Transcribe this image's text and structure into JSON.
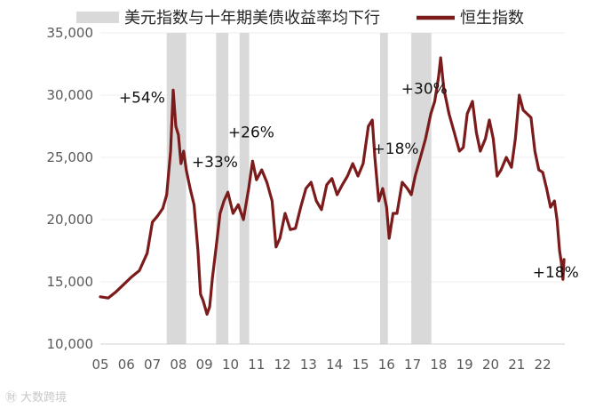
{
  "chart_data": {
    "type": "line",
    "title": "",
    "xlabel": "",
    "ylabel": "",
    "ylim": [
      10000,
      35000
    ],
    "xlim": [
      2005,
      2022.85
    ],
    "yticks": [
      10000,
      15000,
      20000,
      25000,
      30000,
      35000
    ],
    "ytick_labels": [
      "10,000",
      "15,000",
      "20,000",
      "25,000",
      "30,000",
      "35,000"
    ],
    "xticks": [
      2005,
      2006,
      2007,
      2008,
      2009,
      2010,
      2011,
      2012,
      2013,
      2014,
      2015,
      2016,
      2017,
      2018,
      2019,
      2020,
      2021,
      2022
    ],
    "xtick_labels": [
      "05",
      "06",
      "07",
      "08",
      "09",
      "10",
      "11",
      "12",
      "13",
      "14",
      "15",
      "16",
      "17",
      "18",
      "19",
      "20",
      "21",
      "22"
    ],
    "legend": {
      "placement": "top",
      "band_label": "美元指数与十年期美债收益率均下行",
      "line_label": "恒生指数"
    },
    "band_color": "#d9d9d9",
    "line_color": "#7b1b1b",
    "shaded_periods": [
      {
        "start": 2007.55,
        "end": 2008.3
      },
      {
        "start": 2009.45,
        "end": 2009.92
      },
      {
        "start": 2010.35,
        "end": 2010.72
      },
      {
        "start": 2015.75,
        "end": 2016.05
      },
      {
        "start": 2016.95,
        "end": 2017.72
      }
    ],
    "series": [
      {
        "name": "恒生指数",
        "points": [
          [
            2005.0,
            13800
          ],
          [
            2005.3,
            13700
          ],
          [
            2005.6,
            14200
          ],
          [
            2005.9,
            14800
          ],
          [
            2006.2,
            15400
          ],
          [
            2006.5,
            15900
          ],
          [
            2006.8,
            17300
          ],
          [
            2007.0,
            19800
          ],
          [
            2007.2,
            20300
          ],
          [
            2007.4,
            20900
          ],
          [
            2007.55,
            22000
          ],
          [
            2007.7,
            25500
          ],
          [
            2007.8,
            30400
          ],
          [
            2007.9,
            27500
          ],
          [
            2008.0,
            26800
          ],
          [
            2008.1,
            24500
          ],
          [
            2008.2,
            25500
          ],
          [
            2008.3,
            24000
          ],
          [
            2008.45,
            22500
          ],
          [
            2008.6,
            21200
          ],
          [
            2008.75,
            17500
          ],
          [
            2008.85,
            14000
          ],
          [
            2008.95,
            13500
          ],
          [
            2009.1,
            12400
          ],
          [
            2009.2,
            13000
          ],
          [
            2009.3,
            15200
          ],
          [
            2009.45,
            17800
          ],
          [
            2009.6,
            20500
          ],
          [
            2009.75,
            21500
          ],
          [
            2009.9,
            22200
          ],
          [
            2010.1,
            20500
          ],
          [
            2010.3,
            21200
          ],
          [
            2010.5,
            20000
          ],
          [
            2010.7,
            22500
          ],
          [
            2010.85,
            24700
          ],
          [
            2011.0,
            23200
          ],
          [
            2011.2,
            24000
          ],
          [
            2011.4,
            23000
          ],
          [
            2011.6,
            21500
          ],
          [
            2011.75,
            17800
          ],
          [
            2011.9,
            18500
          ],
          [
            2012.1,
            20500
          ],
          [
            2012.3,
            19200
          ],
          [
            2012.5,
            19300
          ],
          [
            2012.7,
            21000
          ],
          [
            2012.9,
            22500
          ],
          [
            2013.1,
            23000
          ],
          [
            2013.3,
            21500
          ],
          [
            2013.5,
            20800
          ],
          [
            2013.7,
            22800
          ],
          [
            2013.9,
            23300
          ],
          [
            2014.1,
            22000
          ],
          [
            2014.3,
            22800
          ],
          [
            2014.5,
            23500
          ],
          [
            2014.7,
            24500
          ],
          [
            2014.9,
            23500
          ],
          [
            2015.1,
            24500
          ],
          [
            2015.3,
            27500
          ],
          [
            2015.45,
            28000
          ],
          [
            2015.55,
            25000
          ],
          [
            2015.7,
            21500
          ],
          [
            2015.85,
            22500
          ],
          [
            2016.0,
            21000
          ],
          [
            2016.1,
            18500
          ],
          [
            2016.25,
            20500
          ],
          [
            2016.4,
            20500
          ],
          [
            2016.6,
            23000
          ],
          [
            2016.8,
            22500
          ],
          [
            2016.95,
            22000
          ],
          [
            2017.1,
            23500
          ],
          [
            2017.3,
            25000
          ],
          [
            2017.5,
            26500
          ],
          [
            2017.7,
            28500
          ],
          [
            2017.85,
            29500
          ],
          [
            2018.0,
            31500
          ],
          [
            2018.08,
            33000
          ],
          [
            2018.2,
            30500
          ],
          [
            2018.4,
            28500
          ],
          [
            2018.6,
            27000
          ],
          [
            2018.8,
            25500
          ],
          [
            2018.95,
            25800
          ],
          [
            2019.1,
            28500
          ],
          [
            2019.3,
            29500
          ],
          [
            2019.45,
            27000
          ],
          [
            2019.6,
            25500
          ],
          [
            2019.8,
            26500
          ],
          [
            2019.95,
            28000
          ],
          [
            2020.1,
            26500
          ],
          [
            2020.25,
            23500
          ],
          [
            2020.4,
            24000
          ],
          [
            2020.6,
            25000
          ],
          [
            2020.8,
            24200
          ],
          [
            2020.95,
            26500
          ],
          [
            2021.1,
            30000
          ],
          [
            2021.25,
            28800
          ],
          [
            2021.4,
            28500
          ],
          [
            2021.55,
            28200
          ],
          [
            2021.7,
            25500
          ],
          [
            2021.85,
            24000
          ],
          [
            2022.0,
            23800
          ],
          [
            2022.15,
            22500
          ],
          [
            2022.3,
            21000
          ],
          [
            2022.45,
            21500
          ],
          [
            2022.55,
            20000
          ],
          [
            2022.65,
            17500
          ],
          [
            2022.72,
            16500
          ],
          [
            2022.78,
            15200
          ],
          [
            2022.82,
            16800
          ]
        ]
      }
    ],
    "annotations": [
      {
        "text": "+54%",
        "x": 2006.6,
        "y": 29400
      },
      {
        "text": "+33%",
        "x": 2009.4,
        "y": 24200
      },
      {
        "text": "+26%",
        "x": 2010.8,
        "y": 26600
      },
      {
        "text": "+18%",
        "x": 2016.35,
        "y": 25300
      },
      {
        "text": "+30%",
        "x": 2017.45,
        "y": 30100
      },
      {
        "text": "+18%",
        "x": 2022.5,
        "y": 15350
      }
    ]
  },
  "watermark": "㊖ 大数跨境"
}
